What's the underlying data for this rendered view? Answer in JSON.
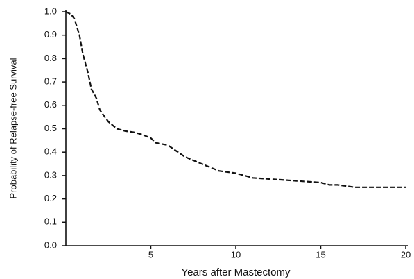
{
  "chart_data": {
    "type": "line",
    "x_label": "Years after Mastectomy",
    "y_label": "Probability of Relapse-free Survival",
    "x": [
      0,
      0.3,
      0.5,
      0.8,
      1.0,
      1.3,
      1.5,
      1.8,
      2.0,
      2.5,
      3,
      3.5,
      4,
      4.5,
      5,
      5.3,
      6,
      7,
      8,
      9,
      10,
      11,
      12,
      13,
      14,
      15,
      15.5,
      16,
      17,
      20
    ],
    "values": [
      1.0,
      0.99,
      0.97,
      0.9,
      0.82,
      0.74,
      0.67,
      0.63,
      0.58,
      0.53,
      0.5,
      0.49,
      0.485,
      0.475,
      0.46,
      0.44,
      0.43,
      0.38,
      0.35,
      0.32,
      0.31,
      0.29,
      0.285,
      0.28,
      0.275,
      0.27,
      0.26,
      0.26,
      0.25,
      0.25
    ],
    "color": "#111111",
    "xlim": [
      0,
      20
    ],
    "xticks": [
      5,
      10,
      15,
      20
    ],
    "ylim": [
      0,
      1
    ],
    "yticks": [
      {
        "value": 0,
        "label": "0.0"
      },
      0.1,
      0.2,
      0.3,
      0.4,
      0.5,
      0.6,
      0.7,
      0.8,
      0.9,
      {
        "value": 1,
        "label": "1.0"
      }
    ],
    "grid": false
  }
}
